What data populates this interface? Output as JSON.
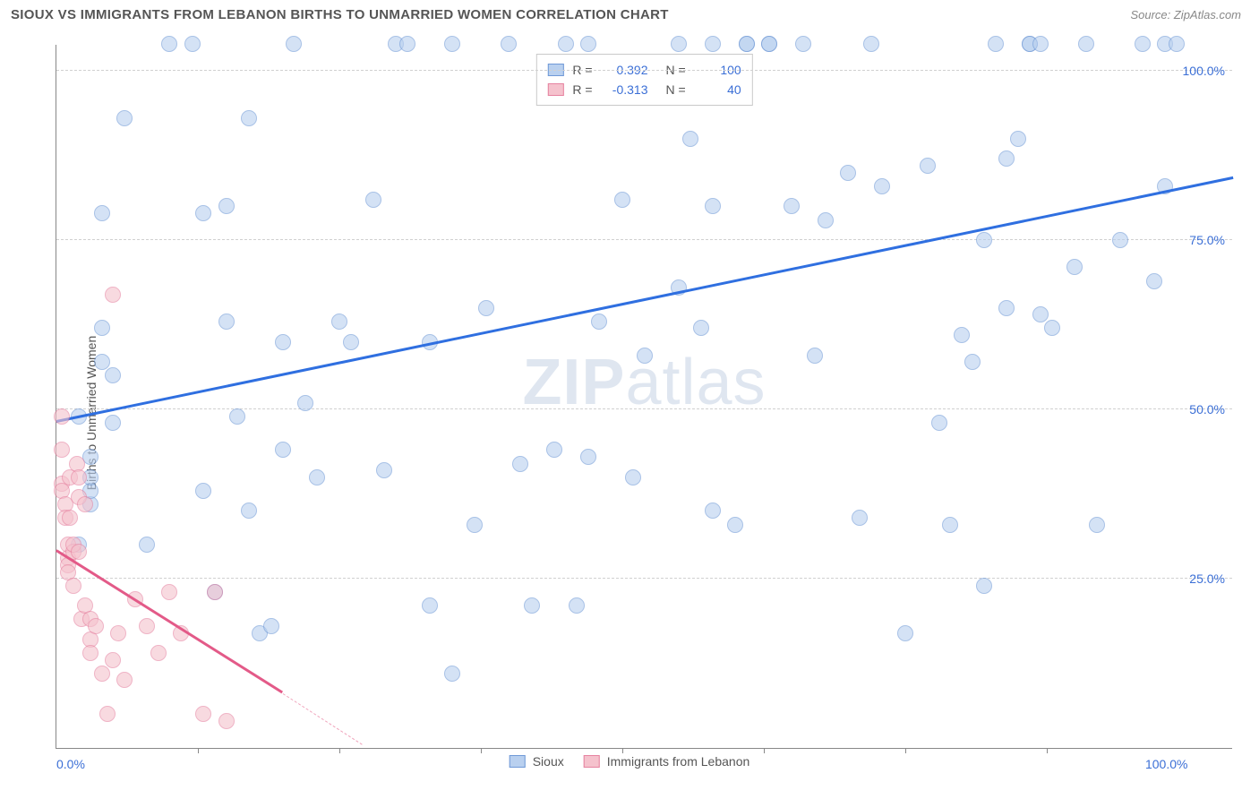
{
  "header": {
    "title": "SIOUX VS IMMIGRANTS FROM LEBANON BIRTHS TO UNMARRIED WOMEN CORRELATION CHART",
    "source": "Source: ZipAtlas.com"
  },
  "chart": {
    "type": "scatter",
    "ylabel": "Births to Unmarried Women",
    "watermark_bold": "ZIP",
    "watermark_rest": "atlas",
    "background_color": "#ffffff",
    "grid_color": "#d0d0d0",
    "axis_color": "#888888",
    "tick_color": "#3b6fd6",
    "xlim": [
      0,
      104
    ],
    "ylim": [
      0,
      104
    ],
    "yticks": [
      25,
      50,
      75,
      100
    ],
    "ytick_labels": [
      "25.0%",
      "50.0%",
      "75.0%",
      "100.0%"
    ],
    "xticks_major": [
      0,
      100
    ],
    "xtick_labels": [
      "0.0%",
      "100.0%"
    ],
    "xticks_minor": [
      12.5,
      25,
      37.5,
      50,
      62.5,
      75,
      87.5
    ],
    "marker_radius": 9,
    "marker_stroke_width": 1.3,
    "series": [
      {
        "name": "Sioux",
        "fill": "#b9d0ef",
        "stroke": "#6f99d7",
        "fill_alpha": 0.6,
        "r": 0.392,
        "n": 100,
        "trend": {
          "x1": 0,
          "y1": 48,
          "x2": 104,
          "y2": 84,
          "color": "#2f6fe0",
          "width": 2.8
        },
        "points": [
          [
            2,
            49
          ],
          [
            2,
            30
          ],
          [
            3,
            43
          ],
          [
            3,
            36
          ],
          [
            3,
            38
          ],
          [
            3,
            40
          ],
          [
            4,
            57
          ],
          [
            4,
            79
          ],
          [
            4,
            62
          ],
          [
            5,
            55
          ],
          [
            5,
            48
          ],
          [
            6,
            93
          ],
          [
            8,
            30
          ],
          [
            10,
            104
          ],
          [
            12,
            104
          ],
          [
            13,
            79
          ],
          [
            13,
            38
          ],
          [
            14,
            23
          ],
          [
            15,
            80
          ],
          [
            15,
            63
          ],
          [
            16,
            49
          ],
          [
            17,
            93
          ],
          [
            17,
            35
          ],
          [
            18,
            17
          ],
          [
            19,
            18
          ],
          [
            20,
            60
          ],
          [
            20,
            44
          ],
          [
            21,
            104
          ],
          [
            22,
            51
          ],
          [
            23,
            40
          ],
          [
            25,
            63
          ],
          [
            26,
            60
          ],
          [
            28,
            81
          ],
          [
            29,
            41
          ],
          [
            30,
            104
          ],
          [
            31,
            104
          ],
          [
            33,
            60
          ],
          [
            33,
            21
          ],
          [
            35,
            104
          ],
          [
            35,
            11
          ],
          [
            37,
            33
          ],
          [
            38,
            65
          ],
          [
            40,
            104
          ],
          [
            41,
            42
          ],
          [
            42,
            21
          ],
          [
            44,
            44
          ],
          [
            45,
            104
          ],
          [
            46,
            21
          ],
          [
            47,
            43
          ],
          [
            47,
            104
          ],
          [
            48,
            63
          ],
          [
            50,
            81
          ],
          [
            51,
            40
          ],
          [
            52,
            58
          ],
          [
            55,
            104
          ],
          [
            55,
            68
          ],
          [
            56,
            90
          ],
          [
            57,
            62
          ],
          [
            58,
            104
          ],
          [
            58,
            35
          ],
          [
            58,
            80
          ],
          [
            60,
            33
          ],
          [
            61,
            104
          ],
          [
            61,
            104
          ],
          [
            63,
            104
          ],
          [
            63,
            104
          ],
          [
            65,
            80
          ],
          [
            66,
            104
          ],
          [
            67,
            58
          ],
          [
            68,
            78
          ],
          [
            70,
            85
          ],
          [
            71,
            34
          ],
          [
            72,
            104
          ],
          [
            73,
            83
          ],
          [
            75,
            17
          ],
          [
            77,
            86
          ],
          [
            78,
            48
          ],
          [
            79,
            33
          ],
          [
            80,
            61
          ],
          [
            81,
            57
          ],
          [
            82,
            75
          ],
          [
            82,
            24
          ],
          [
            83,
            104
          ],
          [
            84,
            65
          ],
          [
            84,
            87
          ],
          [
            85,
            90
          ],
          [
            86,
            104
          ],
          [
            86,
            104
          ],
          [
            87,
            64
          ],
          [
            87,
            104
          ],
          [
            88,
            62
          ],
          [
            90,
            71
          ],
          [
            91,
            104
          ],
          [
            92,
            33
          ],
          [
            94,
            75
          ],
          [
            96,
            104
          ],
          [
            97,
            69
          ],
          [
            98,
            83
          ],
          [
            98,
            104
          ],
          [
            99,
            104
          ]
        ]
      },
      {
        "name": "Immigrants from Lebanon",
        "fill": "#f5c2cd",
        "stroke": "#e682a0",
        "fill_alpha": 0.6,
        "r": -0.313,
        "n": 40,
        "trend": {
          "x1": 0,
          "y1": 29,
          "x2": 20,
          "y2": 8,
          "color": "#e35a88",
          "width": 2.5
        },
        "trend_dash": {
          "x1": 20,
          "y1": 8,
          "x2": 27,
          "y2": 0.5,
          "color": "#f0a3bb",
          "width": 1.5
        },
        "points": [
          [
            0.5,
            49
          ],
          [
            0.5,
            44
          ],
          [
            0.5,
            39
          ],
          [
            0.5,
            38
          ],
          [
            0.8,
            36
          ],
          [
            0.8,
            34
          ],
          [
            1,
            30
          ],
          [
            1,
            28
          ],
          [
            1,
            27
          ],
          [
            1,
            26
          ],
          [
            1.2,
            40
          ],
          [
            1.2,
            34
          ],
          [
            1.5,
            29
          ],
          [
            1.5,
            30
          ],
          [
            1.5,
            24
          ],
          [
            1.8,
            42
          ],
          [
            2,
            37
          ],
          [
            2,
            29
          ],
          [
            2,
            40
          ],
          [
            2.2,
            19
          ],
          [
            2.5,
            36
          ],
          [
            2.5,
            21
          ],
          [
            3,
            19
          ],
          [
            3,
            16
          ],
          [
            3,
            14
          ],
          [
            3.5,
            18
          ],
          [
            4,
            11
          ],
          [
            4.5,
            5
          ],
          [
            5,
            67
          ],
          [
            5,
            13
          ],
          [
            5.5,
            17
          ],
          [
            6,
            10
          ],
          [
            7,
            22
          ],
          [
            8,
            18
          ],
          [
            9,
            14
          ],
          [
            10,
            23
          ],
          [
            11,
            17
          ],
          [
            13,
            5
          ],
          [
            14,
            23
          ],
          [
            15,
            4
          ]
        ]
      }
    ],
    "legend_box": {
      "border_color": "#c9c9c9",
      "labels": {
        "r": "R =",
        "n": "N ="
      }
    }
  }
}
